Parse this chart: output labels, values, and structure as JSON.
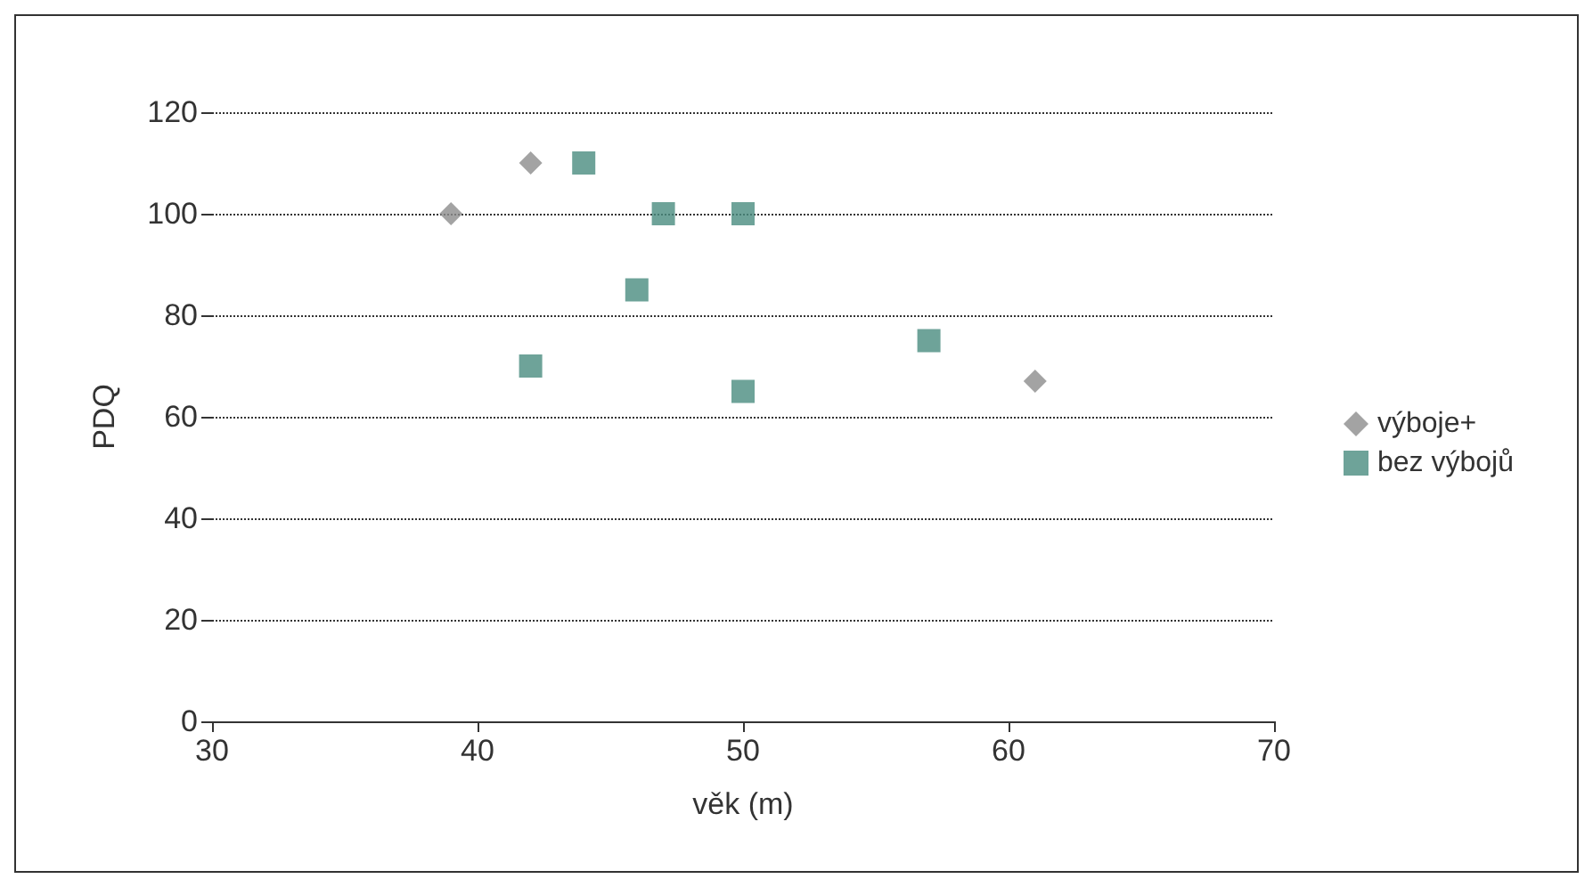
{
  "chart_data": {
    "type": "scatter",
    "xlabel": "věk (m)",
    "ylabel": "PDQ",
    "xlim": [
      30,
      70
    ],
    "xticks": [
      30,
      40,
      50,
      60,
      70
    ],
    "ylim": [
      0,
      120
    ],
    "yticks": [
      0,
      20,
      40,
      60,
      80,
      100,
      120
    ],
    "grid": "y",
    "legend": "right",
    "series": [
      {
        "name": "výboje+",
        "color": "#8c8c8c",
        "marker": "diamond",
        "x": [
          39,
          42,
          61
        ],
        "values": [
          100,
          110,
          67
        ]
      },
      {
        "name": "bez výbojů",
        "color": "#4a8c80",
        "marker": "square",
        "x": [
          44,
          47,
          50,
          46,
          42,
          57,
          50
        ],
        "values": [
          110,
          100,
          100,
          85,
          70,
          75,
          65
        ]
      }
    ]
  }
}
